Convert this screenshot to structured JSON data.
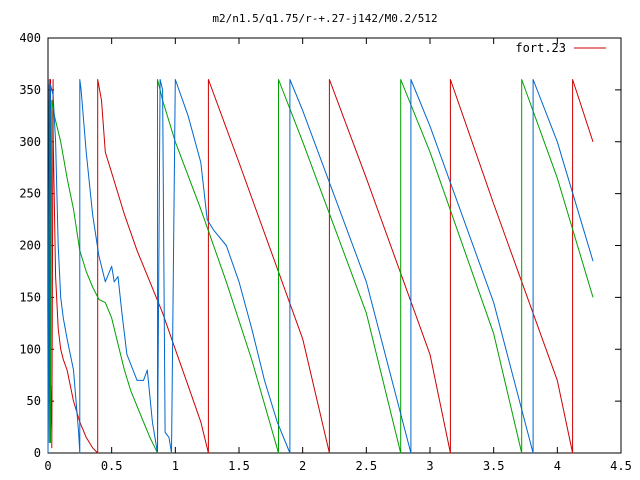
{
  "chart_data": {
    "type": "line",
    "title": "m2/n1.5/q1.75/r-+.27-j142/M0.2/512",
    "xlabel": "",
    "ylabel": "",
    "xlim": [
      0,
      4.5
    ],
    "ylim": [
      0,
      400
    ],
    "xticks": [
      0,
      0.5,
      1,
      1.5,
      2,
      2.5,
      3,
      3.5,
      4,
      4.5
    ],
    "xtick_labels": [
      "0",
      "0.5",
      "1",
      "1.5",
      "2",
      "2.5",
      "3",
      "3.5",
      "4",
      "4.5"
    ],
    "yticks": [
      0,
      50,
      100,
      150,
      200,
      250,
      300,
      350,
      400
    ],
    "ytick_labels": [
      "0",
      "50",
      "100",
      "150",
      "200",
      "250",
      "300",
      "350",
      "400"
    ],
    "grid": false,
    "legend": {
      "position": "top-right",
      "entries": [
        "fort.23"
      ]
    },
    "colors": {
      "red": "#cc0000",
      "green": "#00a000",
      "blue": "#0066cc"
    },
    "series": [
      {
        "color": "#cc0000",
        "legend": "fort.23",
        "x": [
          0.0,
          0.01,
          0.01,
          0.02,
          0.02,
          0.03,
          0.03,
          0.04,
          0.04,
          0.06,
          0.08,
          0.1,
          0.12,
          0.15,
          0.2,
          0.25,
          0.3,
          0.35,
          0.39,
          0.39,
          0.42,
          0.45,
          0.5,
          0.6,
          0.7,
          0.8,
          0.9,
          1.0,
          1.1,
          1.2,
          1.26,
          1.26,
          1.5,
          2.0,
          2.21,
          2.21,
          2.5,
          3.0,
          3.16,
          3.16,
          3.5,
          4.0,
          4.12,
          4.12,
          4.28
        ],
        "y": [
          0,
          355,
          120,
          360,
          20,
          65,
          5,
          360,
          310,
          170,
          120,
          100,
          90,
          80,
          50,
          30,
          15,
          5,
          0,
          360,
          340,
          290,
          270,
          230,
          195,
          165,
          135,
          100,
          65,
          30,
          0,
          360,
          280,
          110,
          0,
          360,
          265,
          95,
          0,
          360,
          240,
          70,
          0,
          360,
          300
        ]
      },
      {
        "color": "#00a000",
        "legend": "",
        "x": [
          0.0,
          0.01,
          0.01,
          0.02,
          0.02,
          0.03,
          0.05,
          0.1,
          0.15,
          0.2,
          0.25,
          0.3,
          0.35,
          0.4,
          0.45,
          0.5,
          0.55,
          0.6,
          0.65,
          0.7,
          0.75,
          0.8,
          0.84,
          0.86,
          0.86,
          0.9,
          1.0,
          1.2,
          1.4,
          1.6,
          1.81,
          1.81,
          2.0,
          2.5,
          2.77,
          2.77,
          3.0,
          3.5,
          3.72,
          3.72,
          4.0,
          4.28
        ],
        "y": [
          10,
          340,
          190,
          355,
          10,
          340,
          325,
          300,
          265,
          235,
          195,
          175,
          160,
          148,
          145,
          130,
          105,
          80,
          60,
          45,
          30,
          15,
          5,
          0,
          360,
          340,
          300,
          235,
          165,
          90,
          0,
          360,
          300,
          135,
          0,
          360,
          290,
          115,
          0,
          360,
          265,
          150
        ]
      },
      {
        "color": "#0066cc",
        "legend": "",
        "x": [
          0.0,
          0.01,
          0.01,
          0.02,
          0.03,
          0.04,
          0.06,
          0.08,
          0.1,
          0.12,
          0.15,
          0.2,
          0.24,
          0.25,
          0.25,
          0.26,
          0.3,
          0.35,
          0.4,
          0.45,
          0.5,
          0.52,
          0.55,
          0.58,
          0.6,
          0.62,
          0.7,
          0.75,
          0.78,
          0.82,
          0.86,
          0.88,
          0.88,
          0.9,
          0.92,
          0.95,
          0.97,
          1.0,
          1.0,
          1.1,
          1.2,
          1.25,
          1.3,
          1.4,
          1.5,
          1.6,
          1.7,
          1.8,
          1.9,
          1.9,
          2.0,
          2.5,
          2.85,
          2.85,
          3.0,
          3.5,
          3.81,
          3.81,
          4.0,
          4.28
        ],
        "y": [
          0,
          360,
          10,
          355,
          350,
          345,
          300,
          200,
          150,
          130,
          110,
          80,
          20,
          0,
          360,
          350,
          290,
          230,
          190,
          165,
          180,
          165,
          170,
          135,
          115,
          95,
          70,
          70,
          80,
          30,
          0,
          360,
          360,
          350,
          20,
          15,
          0,
          360,
          360,
          325,
          280,
          225,
          215,
          200,
          165,
          120,
          70,
          30,
          0,
          360,
          330,
          165,
          0,
          360,
          315,
          145,
          0,
          360,
          300,
          185
        ]
      }
    ]
  }
}
